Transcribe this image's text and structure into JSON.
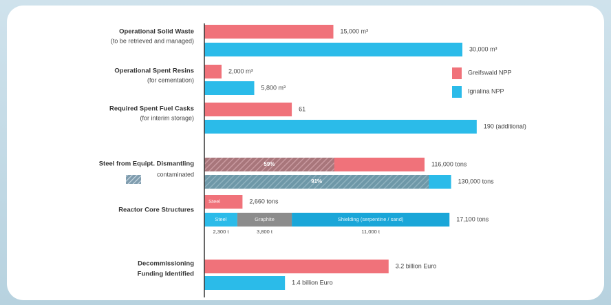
{
  "chart_data": {
    "type": "bar",
    "series": [
      {
        "name": "Greifswald NPP",
        "color": "#f0727a"
      },
      {
        "name": "Ignalina NPP",
        "color": "#2bbbe9"
      }
    ],
    "contaminated_legend": "contaminated",
    "groups": [
      {
        "label": "Operational Solid Waste",
        "sublabel": "(to be retrieved and managed)",
        "xlim": [
          0,
          32000
        ],
        "rows": [
          {
            "value": 15000,
            "value_label": "15,000 m³"
          },
          {
            "value": 30000,
            "value_label": "30,000 m³"
          }
        ]
      },
      {
        "label": "Operational Spent Resins",
        "sublabel": "(for cementation)",
        "xlim": [
          0,
          32000
        ],
        "rows": [
          {
            "value": 2000,
            "value_label": "2,000 m³"
          },
          {
            "value": 5800,
            "value_label": "5,800 m³"
          }
        ]
      },
      {
        "label": "Required Spent Fuel Casks",
        "sublabel": "(for interim storage)",
        "xlim": [
          0,
          192
        ],
        "rows": [
          {
            "value": 61,
            "value_label": "61"
          },
          {
            "value": 190,
            "value_label": "190 (additional)"
          }
        ]
      },
      {
        "label": "Steel from Equipt. Dismantling",
        "xlim": [
          0,
          145000
        ],
        "rows": [
          {
            "value": 116000,
            "value_label": "116,000 tons",
            "contaminated": 59,
            "contaminated_label": "59%"
          },
          {
            "value": 130000,
            "value_label": "130,000 tons",
            "contaminated": 91,
            "contaminated_label": "91%"
          }
        ]
      },
      {
        "label": "Reactor Core Structures",
        "xlim": [
          0,
          19200
        ],
        "rows": [
          {
            "segments": [
              {
                "name": "Steel",
                "value": 2660,
                "color": "#f0727a"
              }
            ],
            "total": 2660,
            "total_label": "2,660 tons"
          },
          {
            "segments": [
              {
                "name": "Steel",
                "value": 2300,
                "value_label": "2,300 t",
                "color": "#2bbbe9"
              },
              {
                "name": "Graphite",
                "value": 3800,
                "value_label": "3,800 t",
                "color": "#8c8c8c"
              },
              {
                "name": "Shielding (serpentine / sand)",
                "value": 11000,
                "value_label": "11,000 t",
                "color": "#1aa6d8"
              }
            ],
            "total": 17100,
            "total_label": "17,100 tons"
          }
        ]
      },
      {
        "label": "Decommissioning",
        "sublabel": "Funding Identified",
        "xlim": [
          0,
          4.78
        ],
        "rows": [
          {
            "value": 3.2,
            "value_label": "3.2 billion Euro"
          },
          {
            "value": 1.4,
            "value_label": "1.4 billion Euro"
          }
        ]
      }
    ]
  }
}
